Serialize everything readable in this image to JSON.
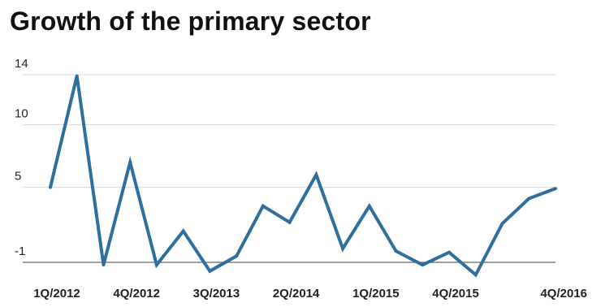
{
  "chart_data": {
    "type": "line",
    "title": "Growth of the primary sector",
    "xlabel": "",
    "ylabel": "",
    "x": [
      "1Q/2012",
      "2Q/2012",
      "3Q/2012",
      "4Q/2012",
      "1Q/2013",
      "2Q/2013",
      "3Q/2013",
      "4Q/2013",
      "1Q/2014",
      "2Q/2014",
      "3Q/2014",
      "4Q/2014",
      "1Q/2015",
      "2Q/2015",
      "3Q/2015",
      "4Q/2015",
      "1Q/2016",
      "2Q/2016",
      "3Q/2016",
      "4Q/2016"
    ],
    "series": [
      {
        "values": [
          5.0,
          13.9,
          -1.2,
          7.0,
          -1.2,
          1.5,
          -1.7,
          -0.5,
          3.5,
          2.2,
          6.0,
          0.1,
          3.5,
          -0.1,
          -1.2,
          -0.2,
          -2.0,
          2.1,
          4.1,
          4.9
        ]
      }
    ],
    "xtick_labels": [
      "1Q/2012",
      "4Q/2012",
      "3Q/2013",
      "2Q/2014",
      "1Q/2015",
      "4Q/2015",
      "4Q/2016"
    ],
    "yticks": [
      "14",
      "10",
      "5",
      "-1"
    ],
    "ylim": [
      -2.5,
      15
    ],
    "grid": true,
    "line_color": "#2e6f9e",
    "grid_color": "#d9d9d9",
    "baseline_color": "#666666"
  }
}
